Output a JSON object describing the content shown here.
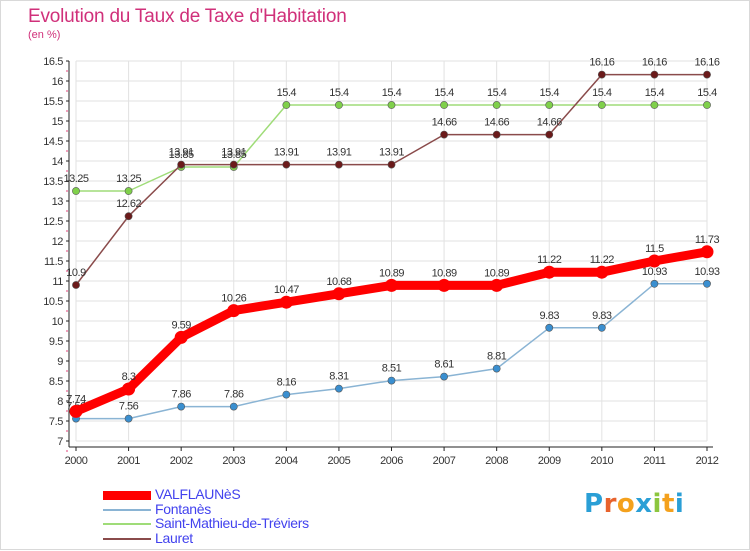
{
  "title": "Evolution du Taux de Taxe d'Habitation",
  "unit": "(en %)",
  "logo": {
    "text": "Proxiti",
    "letter_colors": [
      "#2a9fd6",
      "#e8622c",
      "#f4a11d",
      "#2a9fd6",
      "#8cc63e",
      "#f4a11d",
      "#2a9fd6"
    ]
  },
  "chart_data": {
    "type": "line",
    "x": [
      "2000",
      "2001",
      "2002",
      "2003",
      "2004",
      "2005",
      "2006",
      "2007",
      "2008",
      "2009",
      "2010",
      "2011",
      "2012"
    ],
    "ylim": [
      7,
      16.5
    ],
    "y_ticks": [
      "7",
      "7.5",
      "8",
      "8.5",
      "9",
      "9.5",
      "10",
      "10.5",
      "11",
      "11.5",
      "12",
      "12.5",
      "13",
      "13.5",
      "14",
      "14.5",
      "15",
      "15.5",
      "16",
      "16.5"
    ],
    "grid": true,
    "legend_position": "bottom-left",
    "series": [
      {
        "name": "VALFLAUNèS",
        "color": "#ff0000",
        "marker_fill": "#ff0000",
        "emphasis": true,
        "values": [
          7.74,
          8.3,
          9.59,
          10.26,
          10.47,
          10.68,
          10.89,
          10.89,
          10.89,
          11.22,
          11.22,
          11.5,
          11.73
        ],
        "labels": [
          "7.74",
          "8.3",
          "9.59",
          "10.26",
          "10.47",
          "10.68",
          "10.89",
          "10.89",
          "10.89",
          "11.22",
          "11.22",
          "11.5",
          "11.73"
        ]
      },
      {
        "name": "Fontanès",
        "color": "#8ab4d4",
        "marker_fill": "#3a8fd0",
        "emphasis": false,
        "values": [
          7.56,
          7.56,
          7.86,
          7.86,
          8.16,
          8.31,
          8.51,
          8.61,
          8.81,
          9.83,
          9.83,
          10.93,
          10.93
        ],
        "labels": [
          "7.56",
          "7.56",
          "7.86",
          "7.86",
          "8.16",
          "8.31",
          "8.51",
          "8.61",
          "8.81",
          "9.83",
          "9.83",
          "10.93",
          "10.93"
        ]
      },
      {
        "name": "Saint-Mathieu-de-Tréviers",
        "color": "#9fdc78",
        "marker_fill": "#7fd04a",
        "emphasis": false,
        "values": [
          13.25,
          13.25,
          13.85,
          13.85,
          15.4,
          15.4,
          15.4,
          15.4,
          15.4,
          15.4,
          15.4,
          15.4,
          15.4
        ],
        "labels": [
          "13.25",
          "13.25",
          "13.85",
          "13.85",
          "15.4",
          "15.4",
          "15.4",
          "15.4",
          "15.4",
          "15.4",
          "15.4",
          "15.4",
          "15.4"
        ]
      },
      {
        "name": "Lauret",
        "color": "#8a4b4b",
        "marker_fill": "#6b1a1a",
        "emphasis": false,
        "values": [
          10.9,
          12.62,
          13.91,
          13.91,
          13.91,
          13.91,
          13.91,
          14.66,
          14.66,
          14.66,
          16.16,
          16.16,
          16.16
        ],
        "labels": [
          "10.9",
          "12.62",
          "13.91",
          "13.91",
          "13.91",
          "13.91",
          "13.91",
          "14.66",
          "14.66",
          "14.66",
          "16.16",
          "16.16",
          "16.16"
        ]
      }
    ]
  }
}
